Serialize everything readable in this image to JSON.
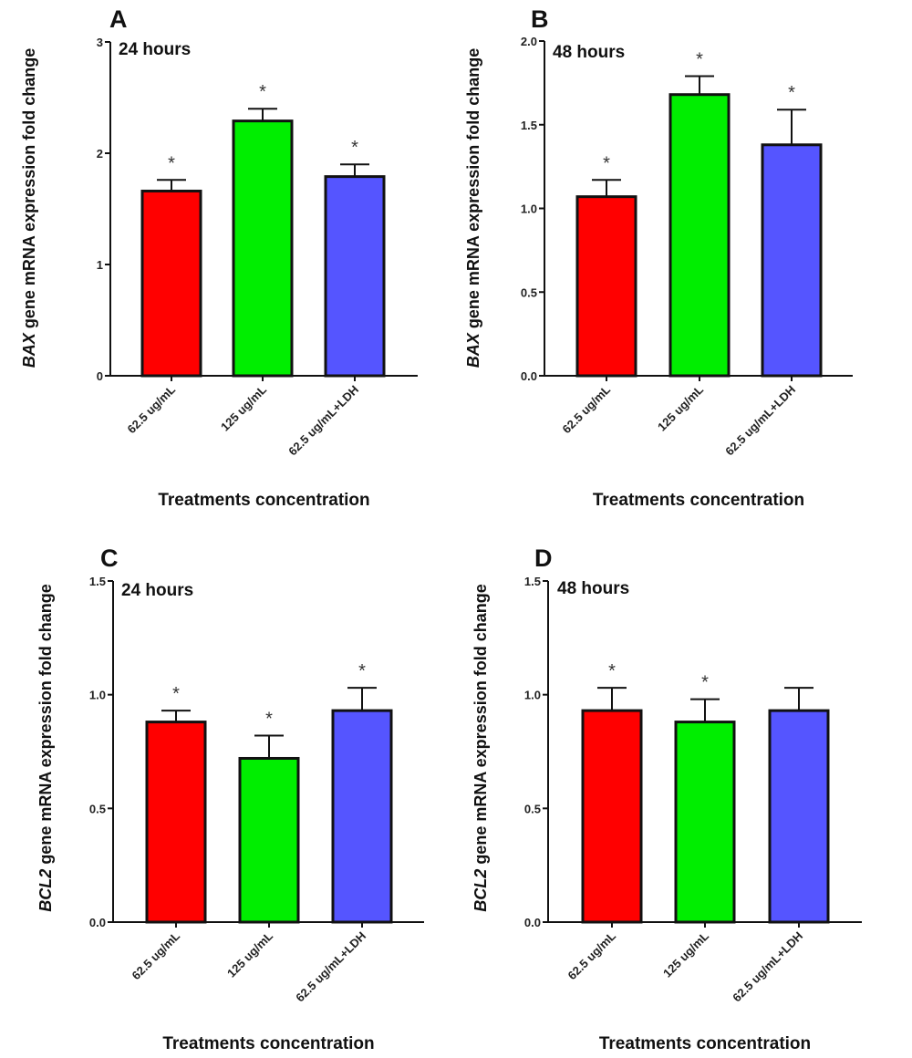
{
  "figure": {
    "x_axis_title": "Treatments concentration",
    "colors": {
      "red": "#ff0000",
      "green": "#00ee00",
      "blue": "#5555ff",
      "outline": "#111111"
    }
  },
  "chart_data": [
    {
      "type": "bar",
      "panel": "A",
      "subtitle": "24 hours",
      "gene": "BAX",
      "ylabel_suffix": " gene mRNA expression fold change",
      "xlabel": "Treatments concentration",
      "categories": [
        "62.5 ug/mL",
        "125 ug/mL",
        "62.5 ug/mL+LDH"
      ],
      "values": [
        1.66,
        2.29,
        1.79
      ],
      "errors": [
        0.1,
        0.11,
        0.11
      ],
      "significant": [
        true,
        true,
        true
      ],
      "ylim": [
        0,
        3
      ],
      "yticks": [
        0,
        1,
        2,
        3
      ],
      "ytick_labels": [
        "0",
        "1",
        "2",
        "3"
      ],
      "bar_colors": [
        "#ff0000",
        "#00ee00",
        "#5555ff"
      ],
      "grid": false
    },
    {
      "type": "bar",
      "panel": "B",
      "subtitle": "48 hours",
      "gene": "BAX",
      "ylabel_suffix": " gene mRNA expression fold change",
      "xlabel": "Treatments concentration",
      "categories": [
        "62.5 ug/mL",
        "125 ug/mL",
        "62.5 ug/mL+LDH"
      ],
      "values": [
        1.07,
        1.68,
        1.38
      ],
      "errors": [
        0.1,
        0.11,
        0.21
      ],
      "significant": [
        true,
        true,
        true
      ],
      "ylim": [
        0,
        2.0
      ],
      "yticks": [
        0,
        0.5,
        1.0,
        1.5,
        2.0
      ],
      "ytick_labels": [
        "0.0",
        "0.5",
        "1.0",
        "1.5",
        "2.0"
      ],
      "bar_colors": [
        "#ff0000",
        "#00ee00",
        "#5555ff"
      ],
      "grid": false
    },
    {
      "type": "bar",
      "panel": "C",
      "subtitle": "24 hours",
      "gene": "BCL2",
      "ylabel_suffix": " gene mRNA expression fold change",
      "xlabel": "Treatments concentration",
      "categories": [
        "62.5 ug/mL",
        "125 ug/mL",
        "62.5 ug/mL+LDH"
      ],
      "values": [
        0.88,
        0.72,
        0.93
      ],
      "errors": [
        0.05,
        0.1,
        0.1
      ],
      "significant": [
        true,
        true,
        true
      ],
      "ylim": [
        0,
        1.5
      ],
      "yticks": [
        0,
        0.5,
        1.0,
        1.5
      ],
      "ytick_labels": [
        "0.0",
        "0.5",
        "1.0",
        "1.5"
      ],
      "bar_colors": [
        "#ff0000",
        "#00ee00",
        "#5555ff"
      ],
      "grid": false
    },
    {
      "type": "bar",
      "panel": "D",
      "subtitle": "48 hours",
      "gene": "BCL2",
      "ylabel_suffix": " gene mRNA expression fold change",
      "xlabel": "Treatments concentration",
      "categories": [
        "62.5 ug/mL",
        "125 ug/mL",
        "62.5 ug/mL+LDH"
      ],
      "values": [
        0.93,
        0.88,
        0.93
      ],
      "errors": [
        0.1,
        0.1,
        0.1
      ],
      "significant": [
        true,
        true,
        false
      ],
      "ylim": [
        0,
        1.5
      ],
      "yticks": [
        0,
        0.5,
        1.0,
        1.5
      ],
      "ytick_labels": [
        "0.0",
        "0.5",
        "1.0",
        "1.5"
      ],
      "bar_colors": [
        "#ff0000",
        "#00ee00",
        "#5555ff"
      ],
      "grid": false
    }
  ],
  "significance_marker": "*"
}
